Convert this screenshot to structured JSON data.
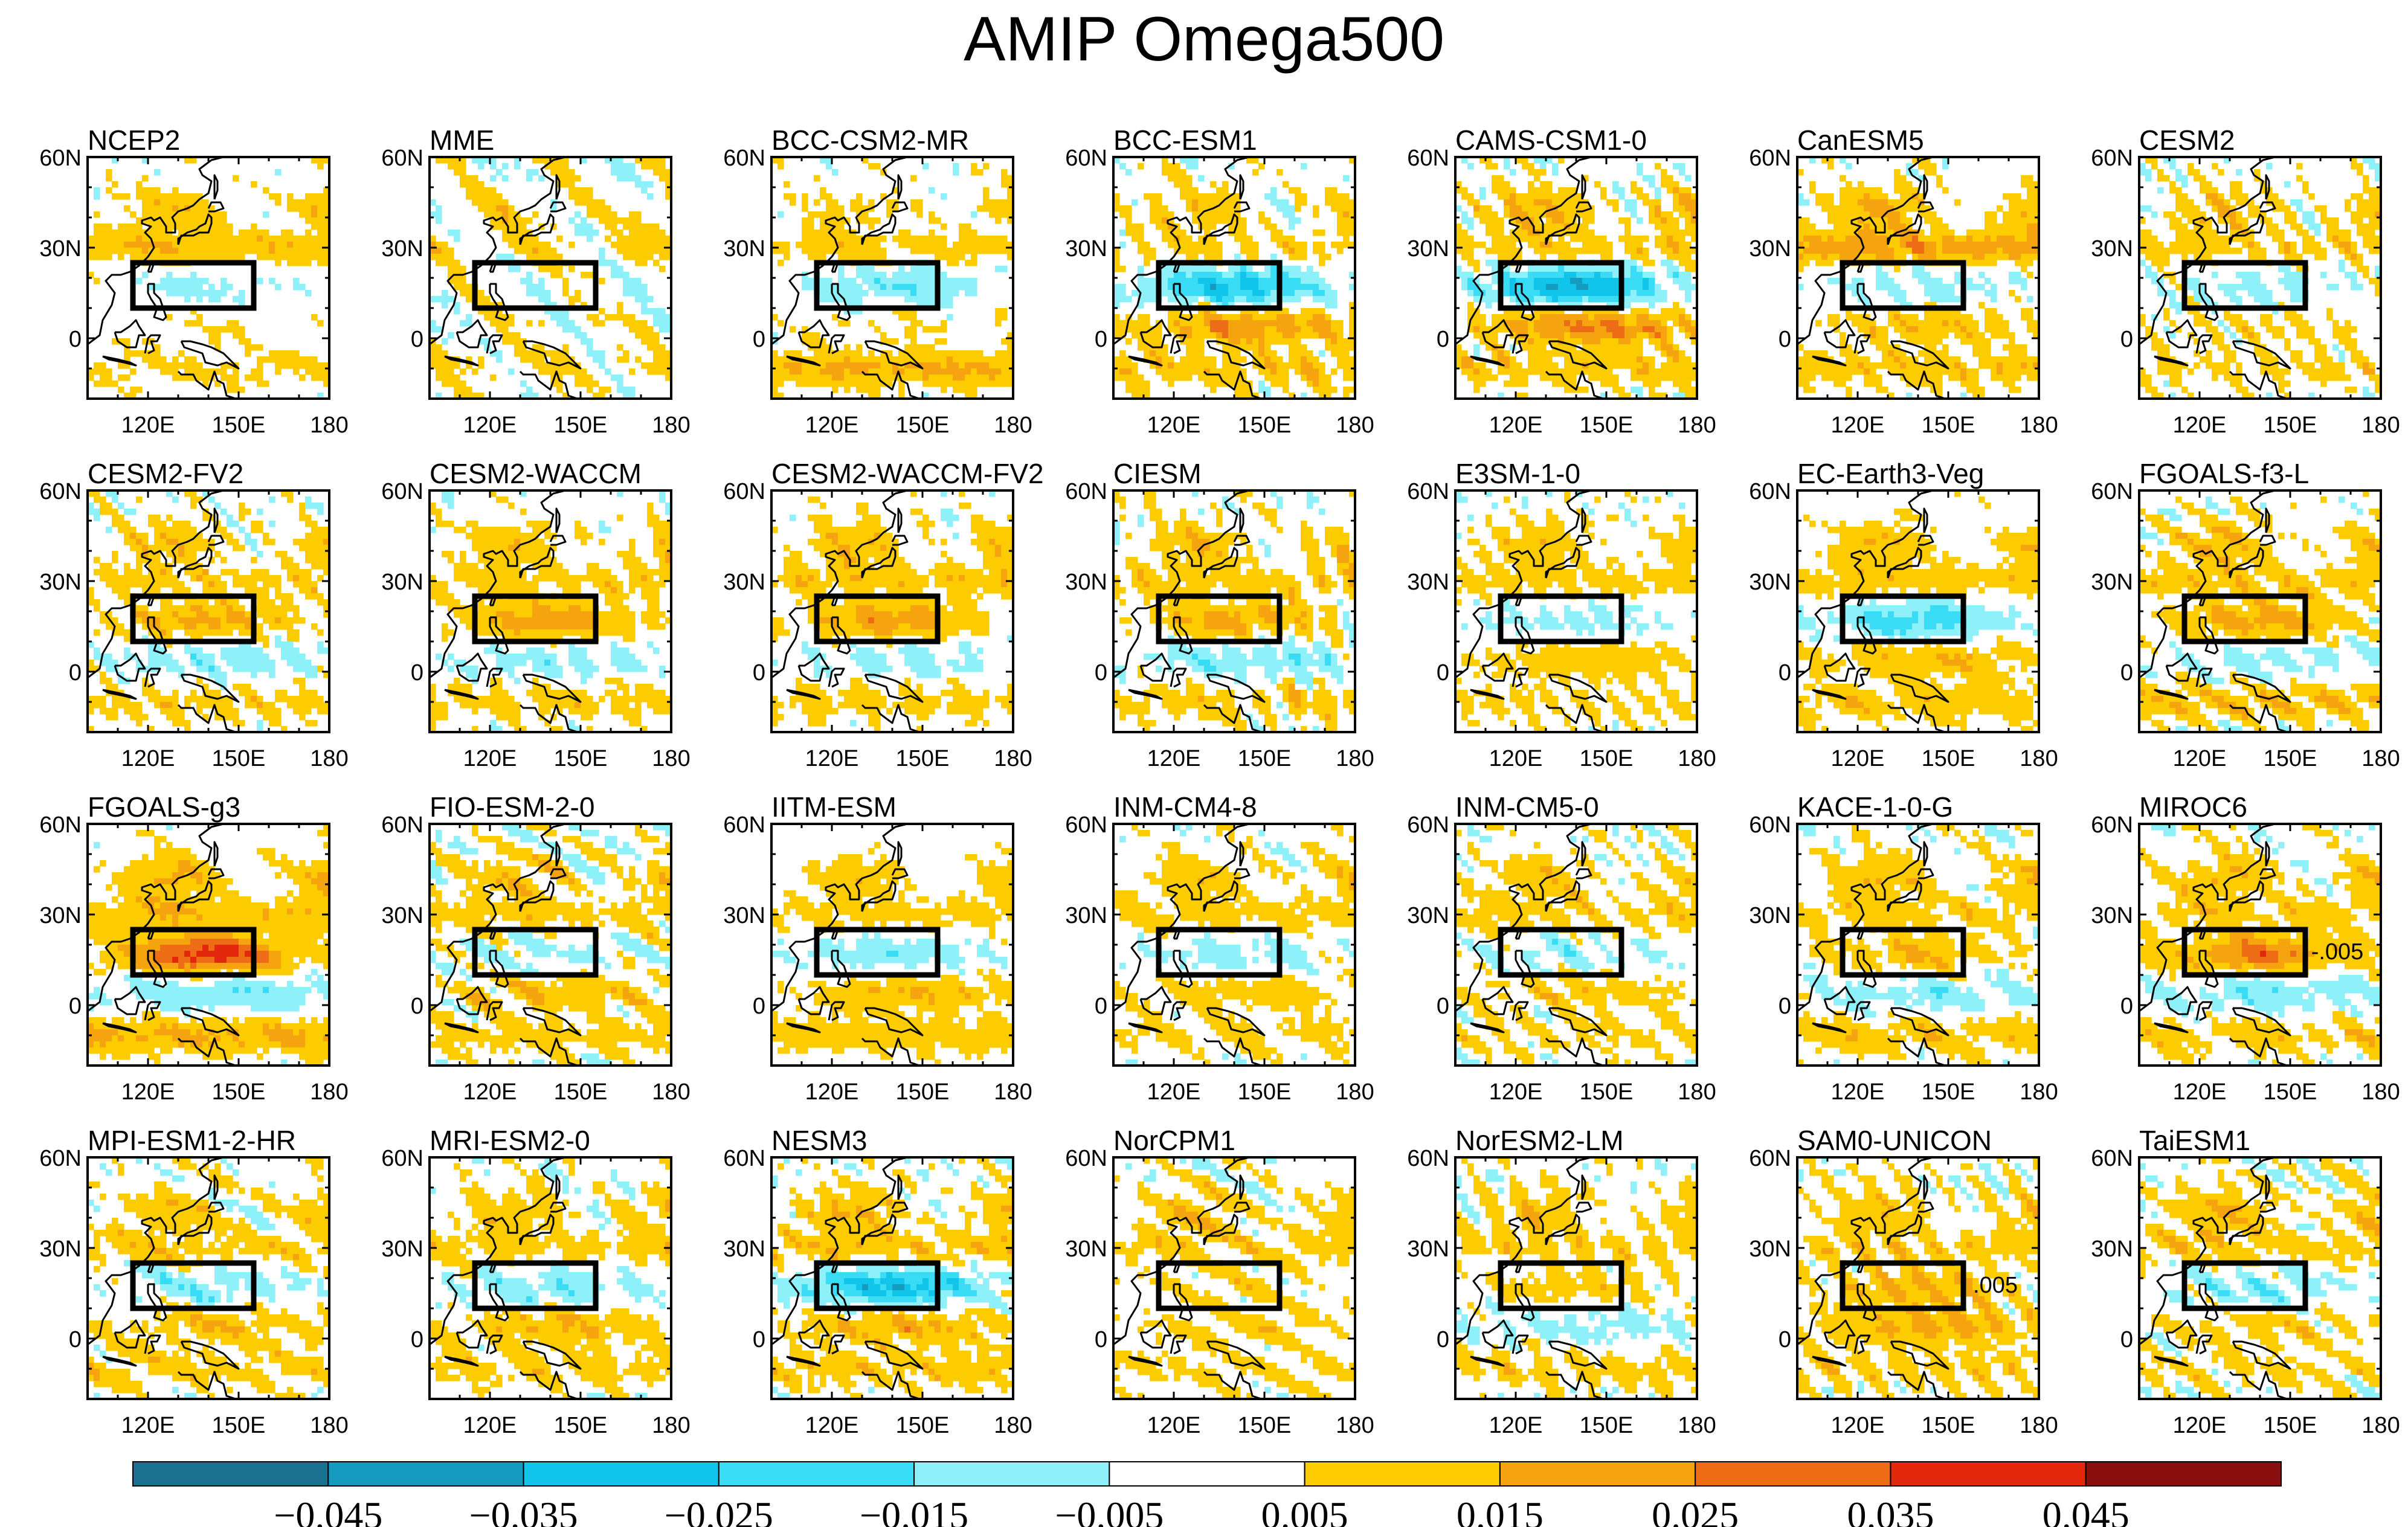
{
  "chart_data": {
    "type": "heatmap",
    "title": "AMIP Omega500",
    "panels": [
      {
        "name": "NCEP2",
        "pattern": [
          0.01,
          0.012,
          -0.006,
          0.004,
          0.006
        ]
      },
      {
        "name": "MME",
        "pattern": [
          0.006,
          0.004,
          0.0,
          0.002,
          0.004
        ]
      },
      {
        "name": "BCC-CSM2-MR",
        "pattern": [
          0.006,
          0.008,
          -0.014,
          0.004,
          0.016
        ]
      },
      {
        "name": "BCC-ESM1",
        "pattern": [
          0.008,
          0.006,
          -0.03,
          0.022,
          0.01
        ]
      },
      {
        "name": "CAMS-CSM1-0",
        "pattern": [
          0.014,
          0.008,
          -0.036,
          0.026,
          0.01
        ]
      },
      {
        "name": "CanESM5",
        "pattern": [
          0.014,
          0.02,
          -0.008,
          0.012,
          0.01
        ]
      },
      {
        "name": "CESM2",
        "pattern": [
          0.01,
          0.008,
          -0.008,
          0.006,
          0.006
        ]
      },
      {
        "name": "CESM2-FV2",
        "pattern": [
          0.01,
          0.008,
          0.018,
          -0.01,
          0.008
        ]
      },
      {
        "name": "CESM2-WACCM",
        "pattern": [
          0.01,
          0.008,
          0.022,
          -0.008,
          0.008
        ]
      },
      {
        "name": "CESM2-WACCM-FV2",
        "pattern": [
          0.012,
          0.01,
          0.022,
          -0.008,
          0.008
        ]
      },
      {
        "name": "CIESM",
        "pattern": [
          0.01,
          0.008,
          0.018,
          -0.012,
          0.008
        ]
      },
      {
        "name": "E3SM-1-0",
        "pattern": [
          0.01,
          0.008,
          -0.008,
          0.012,
          0.006
        ]
      },
      {
        "name": "EC-Earth3-Veg",
        "pattern": [
          0.012,
          0.01,
          -0.02,
          0.014,
          0.01
        ]
      },
      {
        "name": "FGOALS-f3-L",
        "pattern": [
          0.012,
          0.01,
          0.02,
          -0.008,
          0.012
        ]
      },
      {
        "name": "FGOALS-g3",
        "pattern": [
          0.014,
          0.012,
          0.04,
          -0.014,
          0.016
        ]
      },
      {
        "name": "FIO-ESM-2-0",
        "pattern": [
          0.01,
          0.008,
          -0.006,
          0.012,
          0.008
        ]
      },
      {
        "name": "IITM-ESM",
        "pattern": [
          0.01,
          0.008,
          -0.012,
          0.014,
          0.01
        ]
      },
      {
        "name": "INM-CM4-8",
        "pattern": [
          0.01,
          0.008,
          -0.008,
          0.01,
          0.006
        ]
      },
      {
        "name": "INM-CM5-0",
        "pattern": [
          0.01,
          0.008,
          -0.006,
          0.01,
          0.006
        ]
      },
      {
        "name": "KACE-1-0-G",
        "pattern": [
          0.012,
          0.008,
          0.014,
          -0.01,
          0.01
        ]
      },
      {
        "name": "MIROC6",
        "pattern": [
          0.012,
          0.008,
          0.028,
          -0.012,
          0.008
        ]
      },
      {
        "name": "MPI-ESM1-2-HR",
        "pattern": [
          0.01,
          0.008,
          -0.01,
          0.012,
          0.008
        ]
      },
      {
        "name": "MRI-ESM2-0",
        "pattern": [
          0.01,
          0.008,
          -0.012,
          0.014,
          0.008
        ]
      },
      {
        "name": "NESM3",
        "pattern": [
          0.012,
          0.01,
          -0.032,
          0.016,
          0.01
        ]
      },
      {
        "name": "NorCPM1",
        "pattern": [
          0.01,
          0.008,
          0.006,
          0.008,
          0.006
        ]
      },
      {
        "name": "NorESM2-LM",
        "pattern": [
          0.01,
          0.008,
          0.01,
          -0.008,
          0.008
        ]
      },
      {
        "name": "SAM0-UNICON",
        "pattern": [
          0.01,
          0.008,
          0.016,
          0.018,
          0.008
        ]
      },
      {
        "name": "TaiESM1",
        "pattern": [
          0.012,
          0.008,
          -0.01,
          0.008,
          0.006
        ]
      }
    ],
    "pattern_keys": [
      "north_midlat",
      "subtropics",
      "box_region",
      "equatorial",
      "west_pacific"
    ],
    "x_ticks": [
      "120E",
      "150E",
      "180"
    ],
    "x_tick_values": [
      120,
      150,
      180
    ],
    "y_ticks": [
      "60N",
      "30N",
      "0"
    ],
    "y_tick_values": [
      60,
      30,
      0
    ],
    "xlim": [
      100,
      180
    ],
    "ylim": [
      -20,
      60
    ],
    "box": {
      "lon": [
        115,
        155
      ],
      "lat": [
        10,
        25
      ]
    },
    "extra_labels": [
      {
        "panel": "MIROC6",
        "text": "-.005"
      },
      {
        "panel": "SAM0-UNICON",
        "text": ".005"
      }
    ],
    "colorbar": {
      "levels": [
        -0.045,
        -0.035,
        -0.025,
        -0.015,
        -0.005,
        0.005,
        0.015,
        0.025,
        0.035,
        0.045
      ],
      "tick_labels": [
        "−0.045",
        "−0.035",
        "−0.025",
        "−0.015",
        "−0.005",
        "0.005",
        "0.015",
        "0.025",
        "0.035",
        "0.045"
      ],
      "colors": [
        "#1b6f8f",
        "#169bc0",
        "#10c4ea",
        "#3adcf5",
        "#8ef0f8",
        "#ffffff",
        "#fdcc00",
        "#f5a410",
        "#ef6c16",
        "#e3280e",
        "#8a0f0f"
      ]
    }
  }
}
